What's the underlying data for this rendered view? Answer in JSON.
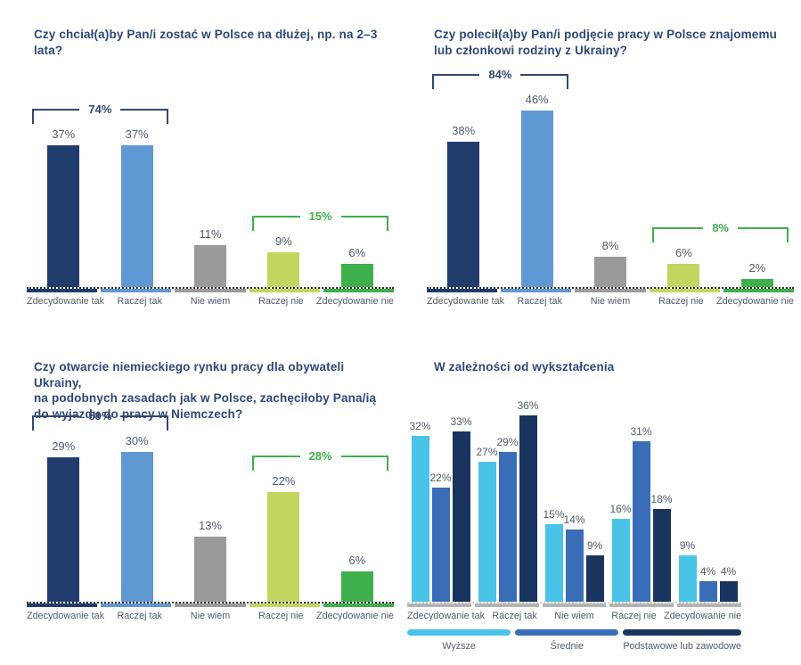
{
  "page": {
    "background": "#ffffff"
  },
  "colors": {
    "title_navy": "#2d4878",
    "label_gray_navy": "#4f5a6b",
    "bracket_navy": "#32486b",
    "bracket_green": "#3fae4c",
    "axis_dotted": "#2e2e2e",
    "group_axis_gray": "#b3b3b3"
  },
  "chart_data": [
    {
      "type": "bar",
      "title": "Czy chciał(a)by Pan/i zostać w Polsce na dłużej, np. na 2–3 lata?",
      "unit": "%",
      "categories": [
        "Zdecydowanie tak",
        "Raczej tak",
        "Nie wiem",
        "Raczej nie",
        "Zdecydowanie nie"
      ],
      "values": [
        37,
        37,
        11,
        9,
        6
      ],
      "bar_colors": [
        "#1f3c6d",
        "#5f98d3",
        "#9a9a9a",
        "#c3d55e",
        "#3eb04b"
      ],
      "ylim": [
        0,
        50
      ],
      "grid": false,
      "brackets": [
        {
          "label": "74%",
          "from": 0,
          "to": 1,
          "color": "#32486b"
        },
        {
          "label": "15%",
          "from": 3,
          "to": 4,
          "color": "#3fae4c"
        }
      ]
    },
    {
      "type": "bar",
      "title": "Czy polecił(a)by Pan/i podjęcie pracy w Polsce znajomemu\nlub członkowi rodziny z Ukrainy?",
      "unit": "%",
      "categories": [
        "Zdecydowanie tak",
        "Raczej tak",
        "Nie wiem",
        "Raczej nie",
        "Zdecydowanie nie"
      ],
      "values": [
        38,
        46,
        8,
        6,
        2
      ],
      "bar_colors": [
        "#1f3c6d",
        "#5f98d3",
        "#9a9a9a",
        "#c3d55e",
        "#3eb04b"
      ],
      "ylim": [
        0,
        50
      ],
      "grid": false,
      "brackets": [
        {
          "label": "84%",
          "from": 0,
          "to": 1,
          "color": "#32486b"
        },
        {
          "label": "8%",
          "from": 3,
          "to": 4,
          "color": "#3fae4c"
        }
      ]
    },
    {
      "type": "bar",
      "title": "Czy otwarcie niemieckiego rynku pracy dla obywateli Ukrainy,\nna podobnych zasadach jak w Polsce, zachęciłoby Pana/ią\ndo wyjazdu do pracy w Niemczech?",
      "unit": "%",
      "categories": [
        "Zdecydowanie tak",
        "Raczej tak",
        "Nie wiem",
        "Raczej nie",
        "Zdecydowanie nie"
      ],
      "values": [
        29,
        30,
        13,
        22,
        6
      ],
      "bar_colors": [
        "#1f3c6d",
        "#5f98d3",
        "#9a9a9a",
        "#c3d55e",
        "#3eb04b"
      ],
      "ylim": [
        0,
        43
      ],
      "grid": false,
      "brackets": [
        {
          "label": "59%",
          "from": 0,
          "to": 1,
          "color": "#32486b"
        },
        {
          "label": "28%",
          "from": 3,
          "to": 4,
          "color": "#3fae4c"
        }
      ]
    },
    {
      "type": "grouped-bar",
      "title": "W zależności od wykształcenia",
      "unit": "%",
      "categories": [
        "Zdecydowanie tak",
        "Raczej tak",
        "Nie wiem",
        "Raczej nie",
        "Zdecydowanie nie"
      ],
      "series": [
        {
          "name": "Wyższe",
          "color": "#4ac3e8",
          "values": [
            32,
            27,
            15,
            16,
            9
          ]
        },
        {
          "name": "Średnie",
          "color": "#3a6db8",
          "values": [
            22,
            29,
            14,
            31,
            4
          ]
        },
        {
          "name": "Podstawowe lub zawodowe",
          "color": "#19355f",
          "values": [
            33,
            36,
            9,
            18,
            4
          ]
        }
      ],
      "ylim": [
        0,
        41
      ],
      "grid": false,
      "legend_position": "bottom",
      "axis_stub_color": "#b3b3b3"
    }
  ]
}
